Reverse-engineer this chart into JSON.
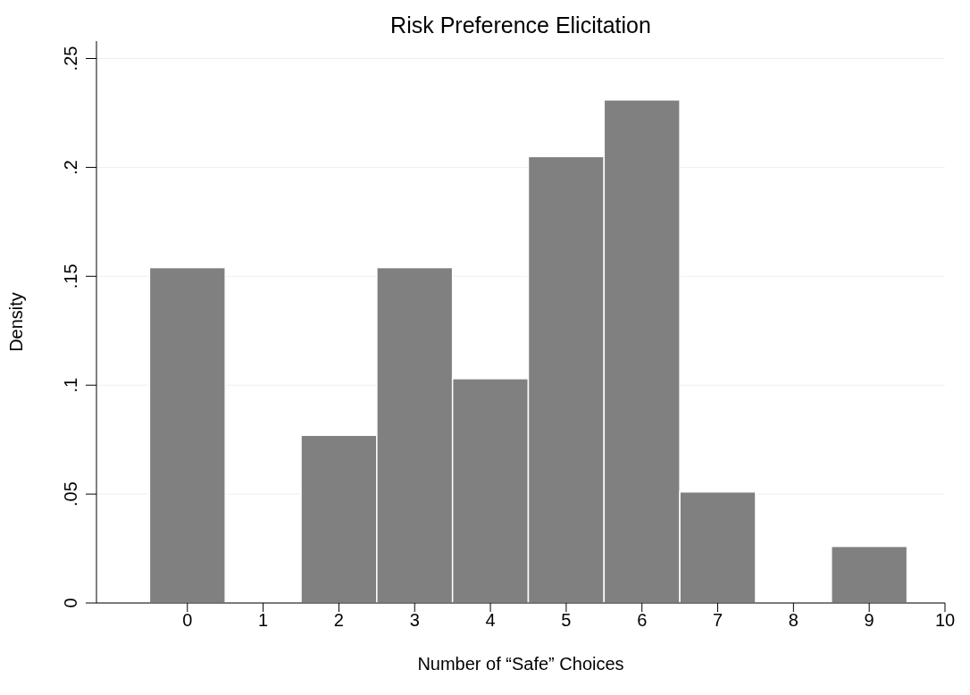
{
  "chart_data": {
    "type": "histogram",
    "title": "Risk Preference Elicitation",
    "xlabel": "Number of “Safe” Choices",
    "ylabel": "Density",
    "bins": [
      -0.5,
      0.5,
      1.5,
      2.5,
      3.5,
      4.5,
      5.5,
      6.5,
      7.5,
      8.5,
      9.5
    ],
    "values": [
      0.154,
      0,
      0.077,
      0.154,
      0.103,
      0.205,
      0.231,
      0.051,
      0,
      0.026
    ],
    "color": "#808080",
    "xlim": [
      -1.2,
      10
    ],
    "xticks": [
      0,
      1,
      2,
      3,
      4,
      5,
      6,
      7,
      8,
      9,
      10
    ],
    "ylim": [
      0,
      0.258
    ],
    "yticks": [
      0,
      {
        "value": 0.05,
        "label": ".05"
      },
      {
        "value": 0.1,
        "label": ".1"
      },
      {
        "value": 0.15,
        "label": ".15"
      },
      {
        "value": 0.2,
        "label": ".2"
      },
      {
        "value": 0.25,
        "label": ".25"
      }
    ],
    "grid": "y"
  }
}
